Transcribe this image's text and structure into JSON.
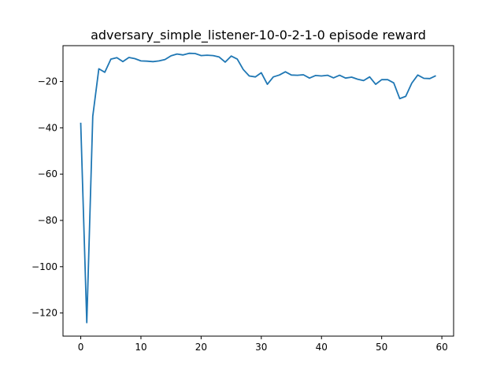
{
  "chart_data": {
    "type": "line",
    "title": "adversary_simple_listener-10-0-2-1-0 episode reward",
    "xlabel": "",
    "ylabel": "",
    "xlim": [
      -2.95,
      61.95
    ],
    "ylim": [
      -130,
      -4.5
    ],
    "xticks": [
      0,
      10,
      20,
      30,
      40,
      50,
      60
    ],
    "yticks": [
      -120,
      -100,
      -80,
      -60,
      -40,
      -20
    ],
    "grid": false,
    "legend": "none",
    "series": [
      {
        "color": "#1f77b4",
        "x": [
          0,
          1,
          2,
          3,
          4,
          5,
          6,
          7,
          8,
          9,
          10,
          11,
          12,
          13,
          14,
          15,
          16,
          17,
          18,
          19,
          20,
          21,
          22,
          23,
          24,
          25,
          26,
          27,
          28,
          29,
          30,
          31,
          32,
          33,
          34,
          35,
          36,
          37,
          38,
          39,
          40,
          41,
          42,
          43,
          44,
          45,
          46,
          47,
          48,
          49,
          50,
          51,
          52,
          53,
          54,
          55,
          56,
          57,
          58,
          59
        ],
        "y": [
          -37.8,
          -124.2,
          -35.0,
          -14.5,
          -16.0,
          -10.3,
          -9.7,
          -11.4,
          -9.6,
          -10.1,
          -11.1,
          -11.2,
          -11.4,
          -11.1,
          -10.5,
          -8.9,
          -8.1,
          -8.5,
          -7.8,
          -7.9,
          -8.8,
          -8.6,
          -8.8,
          -9.4,
          -11.6,
          -9.0,
          -10.3,
          -14.8,
          -17.6,
          -18.0,
          -16.2,
          -21.2,
          -18.0,
          -17.2,
          -15.8,
          -17.2,
          -17.3,
          -17.1,
          -18.5,
          -17.4,
          -17.6,
          -17.3,
          -18.4,
          -17.3,
          -18.5,
          -18.1,
          -19.0,
          -19.6,
          -18.0,
          -21.2,
          -19.2,
          -19.2,
          -20.6,
          -27.4,
          -26.4,
          -20.7,
          -17.2,
          -18.6,
          -18.7,
          -17.5
        ]
      }
    ]
  }
}
